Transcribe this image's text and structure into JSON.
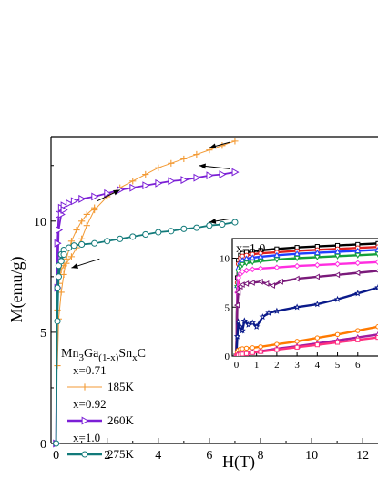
{
  "chart_data": [
    {
      "type": "line",
      "xlabel": "H(T)",
      "ylabel": "M(emu/g)",
      "xlim": [
        -0.2,
        12.6
      ],
      "ylim": [
        0,
        13.8
      ],
      "x_ticks": [
        "0",
        "2",
        "4",
        "6",
        "8",
        "10",
        "12"
      ],
      "y_ticks": [
        "0",
        "5",
        "10"
      ],
      "legend": {
        "title_main": "Mn",
        "title_sub1": "3",
        "title_mid": "Ga",
        "title_sub2": "(1-x)",
        "title_mid2": "Sn",
        "title_sub3": "x",
        "title_end": "C",
        "placement": "lower-left",
        "entries": [
          {
            "group": "x=0.71",
            "name": "185K",
            "color": "#f39a34"
          },
          {
            "group": "x=0.92",
            "name": "260K",
            "color": "#7b1fd6"
          },
          {
            "group": "x=1.0",
            "name": "275K",
            "color": "#127a7a"
          }
        ]
      },
      "series": [
        {
          "name": "185K",
          "color": "#f39a34",
          "marker": "plus",
          "up_x": [
            0,
            0.05,
            0.1,
            0.2,
            0.3,
            0.4,
            0.6,
            0.8,
            1.0,
            1.2,
            1.5,
            2.0,
            2.5,
            3.0,
            3.5,
            4.0,
            4.5,
            5.0,
            5.5,
            6.0,
            6.5,
            7.0
          ],
          "up_y": [
            0,
            6.0,
            7.2,
            7.8,
            8.0,
            8.1,
            8.4,
            8.8,
            9.2,
            9.8,
            10.5,
            11.1,
            11.5,
            11.8,
            12.1,
            12.4,
            12.6,
            12.8,
            13.0,
            13.2,
            13.4,
            13.6
          ],
          "down_x": [
            0.05,
            0.1,
            0.2,
            0.3,
            0.4,
            0.6,
            0.8,
            1.0,
            1.2,
            1.5
          ],
          "down_y": [
            3.5,
            5.6,
            6.8,
            7.6,
            8.3,
            9.1,
            9.6,
            10.0,
            10.3,
            10.6
          ]
        },
        {
          "name": "260K",
          "color": "#7b1fd6",
          "marker": "triangle-right",
          "up_x": [
            0,
            0.05,
            0.1,
            0.2,
            0.3,
            0.5,
            0.7,
            1.0,
            1.5,
            2.0,
            2.5,
            3.0,
            3.5,
            4.0,
            4.5,
            5.0,
            5.5,
            6.0,
            6.5,
            7.0
          ],
          "up_y": [
            0,
            9.0,
            10.3,
            10.6,
            10.7,
            10.8,
            10.9,
            11.0,
            11.1,
            11.25,
            11.4,
            11.5,
            11.6,
            11.7,
            11.8,
            11.85,
            11.95,
            12.05,
            12.1,
            12.2
          ],
          "down_x": [
            0.05,
            0.1,
            0.2,
            0.3
          ],
          "down_y": [
            7.0,
            9.6,
            10.3,
            10.5
          ]
        },
        {
          "name": "275K",
          "color": "#127a7a",
          "marker": "circle",
          "up_x": [
            0,
            0.05,
            0.1,
            0.2,
            0.3,
            0.5,
            0.7,
            1.0,
            1.5,
            2.0,
            2.5,
            3.0,
            3.5,
            4.0,
            4.5,
            5.0,
            5.5,
            6.0,
            6.5,
            7.0
          ],
          "up_y": [
            0,
            7.0,
            8.0,
            8.5,
            8.7,
            8.8,
            8.9,
            8.95,
            9.0,
            9.1,
            9.2,
            9.3,
            9.4,
            9.5,
            9.55,
            9.65,
            9.7,
            9.8,
            9.85,
            9.95
          ],
          "down_x": [
            0.05,
            0.1,
            0.2,
            0.3
          ],
          "down_y": [
            5.5,
            7.5,
            8.2,
            8.5
          ]
        }
      ],
      "annotations": [
        {
          "type": "arrow",
          "from": [
            6.8,
            13.55
          ],
          "to": [
            6.0,
            13.3
          ]
        },
        {
          "type": "arrow",
          "from": [
            6.8,
            12.35
          ],
          "to": [
            5.6,
            12.5
          ]
        },
        {
          "type": "arrow",
          "from": [
            6.8,
            10.1
          ],
          "to": [
            6.0,
            9.95
          ]
        },
        {
          "type": "arrow",
          "from": [
            1.6,
            10.9
          ],
          "to": [
            2.5,
            11.4
          ]
        },
        {
          "type": "arrow",
          "from": [
            1.7,
            8.3
          ],
          "to": [
            0.6,
            7.9
          ]
        }
      ]
    },
    {
      "type": "line",
      "label": "x=1.0",
      "xlim": [
        -0.2,
        7.0
      ],
      "ylim": [
        0,
        12.0
      ],
      "x_ticks": [
        "0",
        "1",
        "2",
        "3",
        "4",
        "5",
        "6"
      ],
      "y_ticks": [
        "0",
        "5",
        "10"
      ],
      "series": [
        {
          "color": "#000000",
          "marker": "square",
          "x": [
            0,
            0.05,
            0.1,
            0.2,
            0.3,
            0.5,
            0.8,
            1.2,
            2,
            3,
            4,
            5,
            6,
            7
          ],
          "y": [
            0,
            8.0,
            9.8,
            10.3,
            10.5,
            10.6,
            10.7,
            10.8,
            10.95,
            11.1,
            11.2,
            11.3,
            11.4,
            11.5
          ]
        },
        {
          "color": "#e0201e",
          "marker": "circle",
          "x": [
            0,
            0.05,
            0.1,
            0.2,
            0.3,
            0.5,
            0.8,
            1.2,
            2,
            3,
            4,
            5,
            6,
            7
          ],
          "y": [
            0,
            7.5,
            9.4,
            10.0,
            10.2,
            10.3,
            10.4,
            10.5,
            10.6,
            10.75,
            10.85,
            10.95,
            11.05,
            11.15
          ]
        },
        {
          "color": "#1f40ff",
          "marker": "triangle-up",
          "x": [
            0,
            0.05,
            0.1,
            0.2,
            0.3,
            0.5,
            0.8,
            1.2,
            2,
            3,
            4,
            5,
            6,
            7
          ],
          "y": [
            0,
            7.2,
            9.0,
            9.6,
            9.8,
            9.95,
            10.05,
            10.15,
            10.3,
            10.45,
            10.55,
            10.65,
            10.75,
            10.85
          ]
        },
        {
          "color": "#13a03a",
          "marker": "triangle-down",
          "x": [
            0,
            0.05,
            0.1,
            0.2,
            0.3,
            0.5,
            0.8,
            1.2,
            2,
            3,
            4,
            5,
            6,
            7
          ],
          "y": [
            0,
            7.0,
            8.6,
            9.1,
            9.35,
            9.5,
            9.6,
            9.7,
            9.85,
            10.0,
            10.1,
            10.2,
            10.3,
            10.4
          ]
        },
        {
          "color": "#ff2ee0",
          "marker": "diamond",
          "x": [
            0,
            0.05,
            0.1,
            0.2,
            0.3,
            0.5,
            0.8,
            1.2,
            2,
            3,
            4,
            5,
            6,
            7
          ],
          "y": [
            0,
            6.5,
            8.0,
            8.4,
            8.6,
            8.75,
            8.85,
            8.95,
            9.05,
            9.2,
            9.3,
            9.4,
            9.5,
            9.6
          ]
        },
        {
          "color": "#7a1a7a",
          "marker": "triangle-left",
          "x": [
            0,
            0.05,
            0.1,
            0.2,
            0.3,
            0.5,
            0.8,
            1.2,
            1.5,
            1.8,
            2.2,
            3,
            4,
            5,
            6,
            7
          ],
          "y": [
            0,
            5.2,
            6.5,
            7.1,
            7.3,
            7.4,
            7.5,
            7.6,
            7.4,
            7.2,
            7.6,
            7.9,
            8.1,
            8.3,
            8.5,
            8.7
          ]
        },
        {
          "color": "#0a1a8a",
          "marker": "star",
          "x": [
            0,
            0.05,
            0.1,
            0.2,
            0.3,
            0.4,
            0.6,
            0.8,
            1.0,
            1.3,
            1.6,
            2,
            3,
            4,
            5,
            6,
            7
          ],
          "y": [
            0,
            2.0,
            3.5,
            3.0,
            2.6,
            3.6,
            3.2,
            3.4,
            3.0,
            4.0,
            4.4,
            4.6,
            5.0,
            5.3,
            5.8,
            6.4,
            7.0
          ]
        },
        {
          "color": "#ff7a00",
          "marker": "circle",
          "x": [
            0,
            0.05,
            0.1,
            0.2,
            0.3,
            0.5,
            0.8,
            1.2,
            2,
            3,
            4,
            5,
            6,
            7
          ],
          "y": [
            0,
            0.4,
            0.6,
            0.7,
            0.75,
            0.8,
            0.85,
            0.95,
            1.2,
            1.5,
            1.85,
            2.2,
            2.6,
            3.0
          ]
        },
        {
          "color": "#a01aa0",
          "marker": "triangle-up",
          "x": [
            0,
            0.05,
            0.1,
            0.2,
            0.3,
            0.5,
            0.8,
            1.2,
            2,
            3,
            4,
            5,
            6,
            7
          ],
          "y": [
            0,
            0.1,
            0.15,
            0.2,
            0.25,
            0.3,
            0.4,
            0.5,
            0.75,
            1.0,
            1.3,
            1.6,
            1.9,
            2.2
          ]
        },
        {
          "color": "#ff3080",
          "marker": "square",
          "x": [
            0,
            0.05,
            0.1,
            0.2,
            0.3,
            0.5,
            0.8,
            1.2,
            2,
            3,
            4,
            5,
            6,
            7
          ],
          "y": [
            0,
            0.05,
            0.1,
            0.15,
            0.2,
            0.25,
            0.35,
            0.45,
            0.65,
            0.9,
            1.15,
            1.4,
            1.65,
            1.9
          ]
        }
      ]
    }
  ]
}
